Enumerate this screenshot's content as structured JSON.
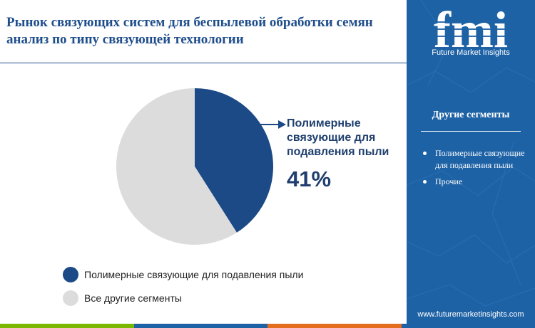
{
  "header": {
    "title": "Рынок связующих систем для беспылевой обработки семян анализ по типу связующей технологии"
  },
  "brand": {
    "logo_text": "fmi",
    "caption": "Future Market Insights",
    "website": "www.futuremarketinsights.com"
  },
  "sidebar": {
    "heading": "Другие сегменты",
    "items": [
      {
        "label": "Полимерные связующие для подавления пыли"
      },
      {
        "label": "Прочие"
      }
    ]
  },
  "callout": {
    "label": "Полимерные связующие для подавления пыли",
    "value": "41%"
  },
  "chart_data": {
    "type": "pie",
    "title": "",
    "series": [
      {
        "name": "Полимерные связующие для подавления пыли",
        "value": 41,
        "color": "#1b4a86"
      },
      {
        "name": "Все другие сегменты",
        "value": 59,
        "color": "#dcdcdc"
      }
    ],
    "start_angle_deg": 0,
    "direction": "clockwise",
    "legend_position": "bottom-left"
  },
  "colors": {
    "title": "#1f4e8c",
    "sidebar": "#1e62a6",
    "accent": "#1b4a86",
    "bottom_bar": [
      "#7ab800",
      "#1e62a6",
      "#e36f1e",
      "#1e62a6"
    ]
  },
  "icons": {
    "arrow": "arrow-right-icon",
    "logo": "fmi-logo-icon"
  }
}
